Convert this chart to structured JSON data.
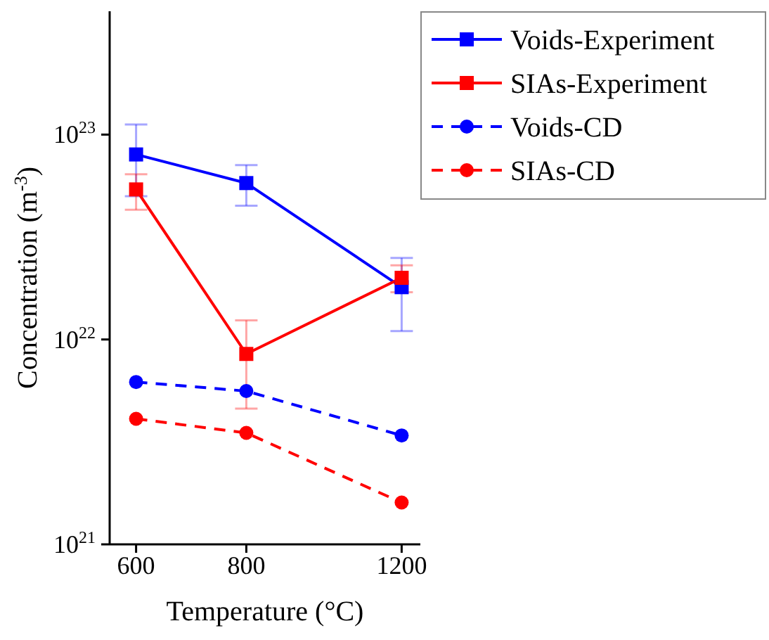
{
  "chart_data": {
    "type": "line",
    "xlabel": "Temperature (°C)",
    "ylabel": "Concentration (m$^{-3}$)",
    "log": "xy",
    "x": [
      600,
      800,
      1200
    ],
    "xlim": [
      560,
      1260
    ],
    "xticks": [
      600,
      800,
      1200
    ],
    "ylim": [
      1e+21,
      4e+23
    ],
    "yticks": [
      {
        "value": 1e+21,
        "label": "10$^{21}$"
      },
      {
        "value": 1e+22,
        "label": "10$^{22}$"
      },
      {
        "value": 1e+23,
        "label": "10$^{23}$"
      }
    ],
    "grid": false,
    "legend": "top right",
    "series": [
      {
        "name": "Voids-Experiment",
        "color": "#0000ff",
        "marker": "square",
        "line_style": "solid",
        "values": [
          8e+22,
          5.8e+22,
          1.8e+22
        ],
        "errors": [
          [
            5e+22,
            1.12e+23
          ],
          [
            4.5e+22,
            7.1e+22
          ],
          [
            1.1e+22,
            2.5e+22
          ]
        ]
      },
      {
        "name": "SIAs-Experiment",
        "color": "#ff0000",
        "marker": "square",
        "line_style": "solid",
        "values": [
          5.4e+22,
          8.5e+21,
          2e+22
        ],
        "errors": [
          [
            4.3e+22,
            6.4e+22
          ],
          [
            4.6e+21,
            1.24e+22
          ],
          [
            1.7e+22,
            2.3e+22
          ]
        ]
      },
      {
        "name": "Voids-CD",
        "color": "#0000ff",
        "marker": "circle",
        "line_style": "dashed",
        "values": [
          6.2e+21,
          5.6e+21,
          3.4e+21
        ]
      },
      {
        "name": "SIAs-CD",
        "color": "#ff0000",
        "marker": "circle",
        "line_style": "dashed",
        "values": [
          4.1e+21,
          3.5e+21,
          1.6e+21
        ]
      }
    ]
  }
}
